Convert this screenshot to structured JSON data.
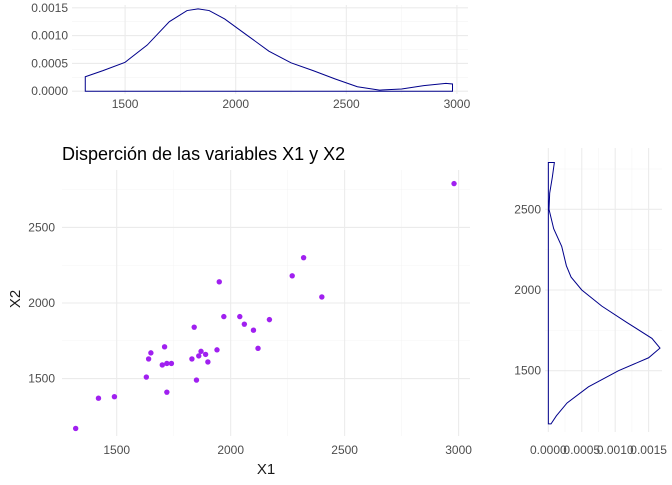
{
  "chart_data": [
    {
      "id": "top-density",
      "type": "line",
      "kind": "density",
      "variable": "X1",
      "xlim": [
        1260,
        3050
      ],
      "ylim": [
        -5e-05,
        0.00155
      ],
      "xticks": [
        1500,
        2000,
        2500,
        3000
      ],
      "xtick_labels": [
        "1500",
        "2000",
        "2500",
        "3000"
      ],
      "yticks": [
        0,
        0.0005,
        0.001,
        0.0015
      ],
      "ytick_labels": [
        "0.0000",
        "0.0005",
        "0.0010",
        "0.0015"
      ],
      "grid": true,
      "line_color": "#00008b",
      "points": [
        [
          1320,
          0
        ],
        [
          1320,
          0.00026
        ],
        [
          1400,
          0.00037
        ],
        [
          1500,
          0.00052
        ],
        [
          1600,
          0.00083
        ],
        [
          1700,
          0.00125
        ],
        [
          1780,
          0.00145
        ],
        [
          1830,
          0.00148
        ],
        [
          1880,
          0.00145
        ],
        [
          1950,
          0.0013
        ],
        [
          2050,
          0.00101
        ],
        [
          2150,
          0.00072
        ],
        [
          2250,
          0.00051
        ],
        [
          2350,
          0.00037
        ],
        [
          2450,
          0.00022
        ],
        [
          2550,
          8e-05
        ],
        [
          2650,
          2e-05
        ],
        [
          2750,
          4e-05
        ],
        [
          2850,
          0.0001
        ],
        [
          2950,
          0.00014
        ],
        [
          2980,
          0.00013
        ],
        [
          2980,
          0
        ]
      ]
    },
    {
      "id": "scatter-main",
      "type": "scatter",
      "title": "Disperción de las variables X1 y X2",
      "xlabel": "X1",
      "ylabel": "X2",
      "xlim": [
        1260,
        3050
      ],
      "ylim": [
        1120,
        2880
      ],
      "xticks": [
        1500,
        2000,
        2500,
        3000
      ],
      "xtick_labels": [
        "1500",
        "2000",
        "2500",
        "3000"
      ],
      "yticks": [
        1500,
        2000,
        2500
      ],
      "ytick_labels": [
        "1500",
        "2000",
        "2500"
      ],
      "grid": true,
      "point_color": "#a020f0",
      "points": [
        [
          1320,
          1170
        ],
        [
          1420,
          1370
        ],
        [
          1490,
          1380
        ],
        [
          1630,
          1510
        ],
        [
          1640,
          1630
        ],
        [
          1650,
          1670
        ],
        [
          1700,
          1590
        ],
        [
          1710,
          1710
        ],
        [
          1720,
          1600
        ],
        [
          1720,
          1410
        ],
        [
          1740,
          1600
        ],
        [
          1830,
          1630
        ],
        [
          1840,
          1840
        ],
        [
          1850,
          1490
        ],
        [
          1860,
          1650
        ],
        [
          1870,
          1680
        ],
        [
          1890,
          1660
        ],
        [
          1900,
          1610
        ],
        [
          1940,
          1690
        ],
        [
          1950,
          2140
        ],
        [
          1970,
          1910
        ],
        [
          2040,
          1910
        ],
        [
          2060,
          1860
        ],
        [
          2100,
          1820
        ],
        [
          2120,
          1700
        ],
        [
          2170,
          1890
        ],
        [
          2270,
          2180
        ],
        [
          2320,
          2300
        ],
        [
          2400,
          2040
        ],
        [
          2980,
          2790
        ]
      ]
    },
    {
      "id": "right-density",
      "type": "line",
      "kind": "density",
      "variable": "X2",
      "orientation": "vertical",
      "xlim": [
        -5e-05,
        0.0017
      ],
      "ylim": [
        1120,
        2880
      ],
      "xticks": [
        0,
        0.0005,
        0.001,
        0.0015
      ],
      "xtick_labels": [
        "0.0000",
        "0.0005",
        "0.0010",
        "0.0015"
      ],
      "yticks": [
        1500,
        2000,
        2500
      ],
      "ytick_labels": [
        "1500",
        "2000",
        "2500"
      ],
      "grid": true,
      "line_color": "#00008b",
      "points": [
        [
          0,
          1170
        ],
        [
          4e-05,
          1170
        ],
        [
          0.00012,
          1220
        ],
        [
          0.00028,
          1300
        ],
        [
          0.0006,
          1400
        ],
        [
          0.00105,
          1500
        ],
        [
          0.0015,
          1580
        ],
        [
          0.00167,
          1640
        ],
        [
          0.00155,
          1700
        ],
        [
          0.00117,
          1800
        ],
        [
          0.0008,
          1900
        ],
        [
          0.0005,
          2000
        ],
        [
          0.00034,
          2080
        ],
        [
          0.00027,
          2150
        ],
        [
          0.0002,
          2270
        ],
        [
          8e-05,
          2380
        ],
        [
          1e-05,
          2500
        ],
        [
          2e-05,
          2600
        ],
        [
          6e-05,
          2700
        ],
        [
          9e-05,
          2790
        ],
        [
          0,
          2790
        ]
      ]
    }
  ]
}
